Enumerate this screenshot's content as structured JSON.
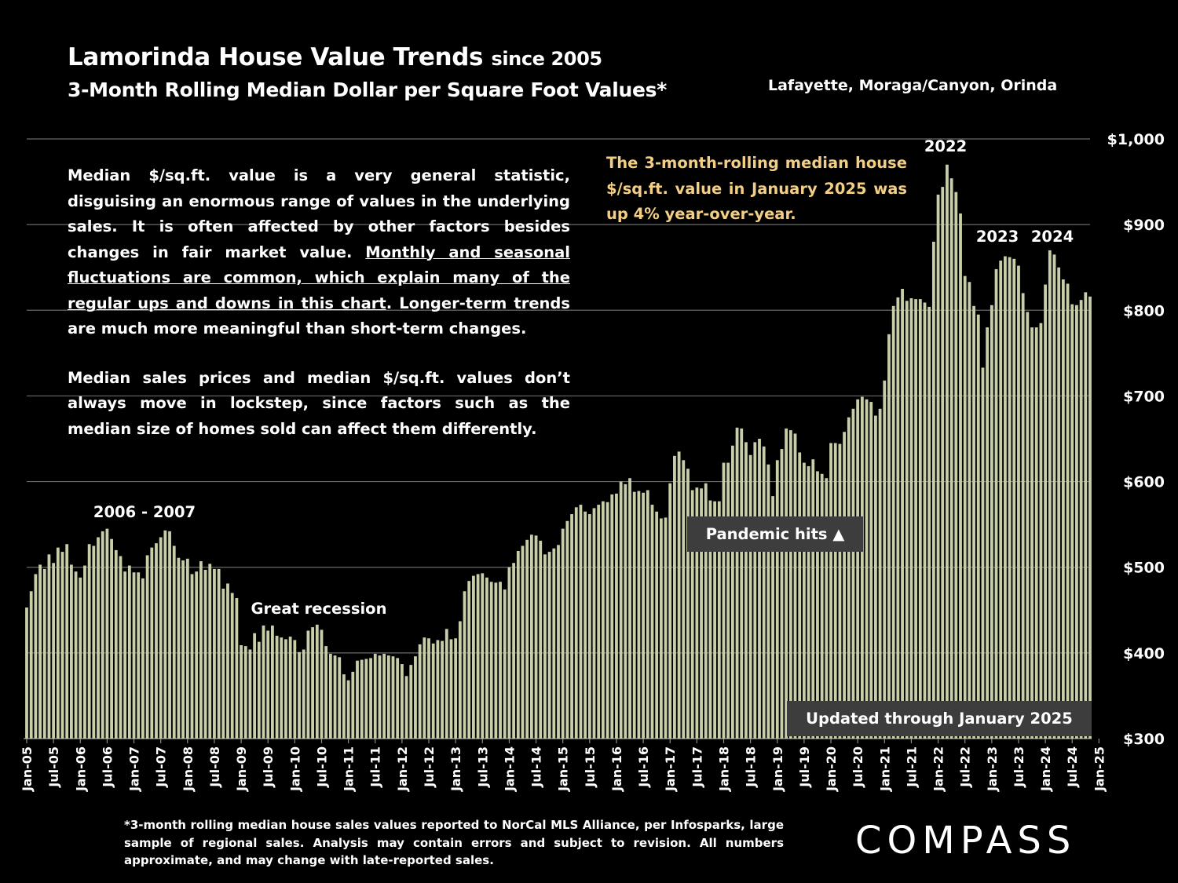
{
  "header": {
    "title": "Lamorinda House Value Trends",
    "title_suffix": "since 2005",
    "subtitle": "3-Month Rolling Median Dollar per Square Foot Values*",
    "region": "Lafayette, Moraga/Canyon, Orinda"
  },
  "description": {
    "p1_start": "Median $/sq.ft. value is a very general statistic, disguising an enormous range of values in the underlying sales. It is often affected by other factors besides changes in fair market value. ",
    "p1_underlined": "Monthly and seasonal fluctuations are common, which explain many of the regular ups and downs in this chart",
    "p1_end": ". Longer-term trends are much more meaningful than short-term changes.",
    "p2": "Median sales prices and median $/sq.ft. values don’t always move in lockstep, since factors such as the median size of homes sold can affect them differently."
  },
  "highlight": "The 3-month-rolling median house $/sq.ft. value in January 2025 was up 4% year-over-year.",
  "pandemic_label": "Pandemic hits ▲",
  "updated_label": "Updated through January 2025",
  "footnote": "*3-month rolling median house sales values reported to NorCal MLS Alliance, per Infosparks, large sample of regional sales. Analysis may contain errors and subject to revision. All numbers approximate, and may change with late-reported sales.",
  "logo": "COMPASS",
  "chart_data": {
    "type": "bar",
    "title": "Lamorinda House Value Trends since 2005",
    "ylim": [
      300,
      1000
    ],
    "y_ticks": [
      "$300",
      "$400",
      "$500",
      "$600",
      "$700",
      "$800",
      "$900",
      "$1,000"
    ],
    "x_tick_labels": [
      "Jan-05",
      "Jul-05",
      "Jan-06",
      "Jul-06",
      "Jan-07",
      "Jul-07",
      "Jan-08",
      "Jul-08",
      "Jan-09",
      "Jul-09",
      "Jan-10",
      "Jul-10",
      "Jan-11",
      "Jul-11",
      "Jan-12",
      "Jul-12",
      "Jan-13",
      "Jul-13",
      "Jan-14",
      "Jul-14",
      "Jan-15",
      "Jul-15",
      "Jan-16",
      "Jul-16",
      "Jan-17",
      "Jul-17",
      "Jan-18",
      "Jul-18",
      "Jan-19",
      "Jul-19",
      "Jan-20",
      "Jul-20",
      "Jan-21",
      "Jul-21",
      "Jan-22",
      "Jul-22",
      "Jan-23",
      "Jul-23",
      "Jan-24",
      "Jul-24",
      "Jan-25"
    ],
    "grid": true,
    "bar_color": "#c8cfa8",
    "annotations": [
      "2006 - 2007",
      "Great recession",
      "2022",
      "2023",
      "2024"
    ],
    "x_start": "Jan-05",
    "x_end": "Jan-25",
    "values": [
      453,
      472,
      492,
      503,
      498,
      515,
      505,
      523,
      518,
      527,
      503,
      495,
      488,
      502,
      527,
      525,
      535,
      542,
      545,
      533,
      520,
      513,
      495,
      502,
      494,
      494,
      487,
      514,
      523,
      528,
      535,
      543,
      542,
      525,
      511,
      508,
      510,
      492,
      495,
      507,
      497,
      504,
      498,
      498,
      475,
      481,
      470,
      464,
      409,
      408,
      404,
      423,
      413,
      432,
      426,
      432,
      420,
      418,
      416,
      419,
      415,
      401,
      404,
      426,
      430,
      433,
      427,
      408,
      399,
      397,
      395,
      375,
      368,
      378,
      391,
      392,
      393,
      394,
      399,
      397,
      399,
      397,
      396,
      394,
      387,
      373,
      386,
      396,
      410,
      418,
      417,
      411,
      415,
      414,
      428,
      416,
      417,
      437,
      472,
      484,
      490,
      492,
      493,
      488,
      483,
      482,
      483,
      474,
      500,
      505,
      519,
      525,
      532,
      538,
      537,
      531,
      515,
      518,
      522,
      526,
      545,
      554,
      562,
      570,
      573,
      565,
      562,
      569,
      573,
      577,
      576,
      585,
      586,
      600,
      597,
      604,
      588,
      589,
      587,
      590,
      573,
      565,
      557,
      558,
      598,
      630,
      635,
      625,
      615,
      590,
      593,
      592,
      598,
      578,
      577,
      577,
      622,
      622,
      642,
      663,
      662,
      646,
      631,
      646,
      650,
      641,
      620,
      583,
      625,
      638,
      662,
      660,
      656,
      634,
      622,
      618,
      626,
      612,
      609,
      604,
      645,
      645,
      644,
      658,
      675,
      685,
      696,
      699,
      696,
      693,
      677,
      685,
      718,
      772,
      805,
      815,
      825,
      811,
      814,
      813,
      813,
      809,
      804,
      880,
      935,
      944,
      970,
      954,
      938,
      913,
      840,
      833,
      805,
      795,
      733,
      780,
      806,
      848,
      858,
      863,
      862,
      860,
      852,
      820,
      798,
      780,
      780,
      785,
      830,
      870,
      865,
      850,
      836,
      831,
      807,
      806,
      812,
      821,
      816
    ]
  }
}
